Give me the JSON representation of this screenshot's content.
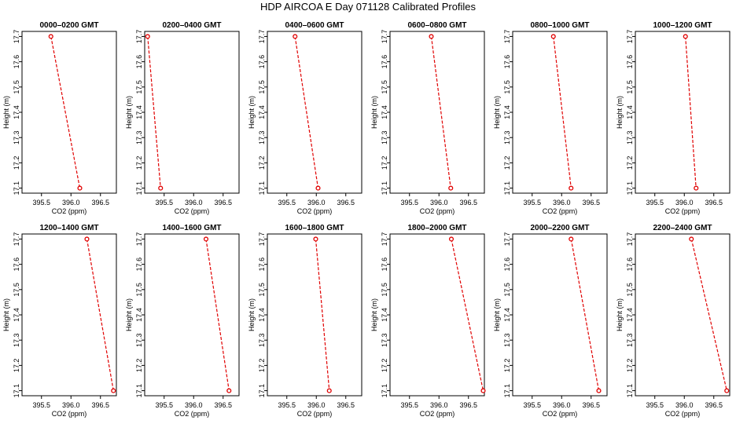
{
  "title": "HDP  AIRCOA E  Day 071128  Calibrated Profiles",
  "chart_data": [
    {
      "type": "line",
      "title": "0000–0200 GMT",
      "xlabel": "CO2 (ppm)",
      "ylabel": "Height (m)",
      "x_ticks": [
        395.5,
        396.0,
        396.5
      ],
      "x_tick_labels": [
        "395.5",
        "396.0",
        "396.5"
      ],
      "y_ticks": [
        17.1,
        17.2,
        17.3,
        17.4,
        17.5,
        17.6,
        17.7
      ],
      "y_tick_labels": [
        "17.1",
        "17.2",
        "17.3",
        "17.4",
        "17.5",
        "17.6",
        "17.7"
      ],
      "ylim": [
        17.08,
        17.72
      ],
      "xlim": [
        395.17,
        396.77
      ],
      "series": [
        {
          "x": [
            395.66,
            396.15
          ],
          "y": [
            17.7,
            17.1
          ]
        }
      ]
    },
    {
      "type": "line",
      "title": "0200–0400 GMT",
      "xlabel": "CO2 (ppm)",
      "ylabel": "Height (m)",
      "x_ticks": [
        395.5,
        396.0,
        396.5
      ],
      "x_tick_labels": [
        "395.5",
        "396.0",
        "396.5"
      ],
      "y_ticks": [
        17.1,
        17.2,
        17.3,
        17.4,
        17.5,
        17.6,
        17.7
      ],
      "y_tick_labels": [
        "17.1",
        "17.2",
        "17.3",
        "17.4",
        "17.5",
        "17.6",
        "17.7"
      ],
      "ylim": [
        17.08,
        17.72
      ],
      "xlim": [
        395.17,
        396.77
      ],
      "series": [
        {
          "x": [
            395.22,
            395.44
          ],
          "y": [
            17.7,
            17.1
          ]
        }
      ]
    },
    {
      "type": "line",
      "title": "0400–0600 GMT",
      "xlabel": "CO2 (ppm)",
      "ylabel": "Height (m)",
      "x_ticks": [
        395.5,
        396.0,
        396.5
      ],
      "x_tick_labels": [
        "395.5",
        "396.0",
        "396.5"
      ],
      "y_ticks": [
        17.1,
        17.2,
        17.3,
        17.4,
        17.5,
        17.6,
        17.7
      ],
      "y_tick_labels": [
        "17.1",
        "17.2",
        "17.3",
        "17.4",
        "17.5",
        "17.6",
        "17.7"
      ],
      "ylim": [
        17.08,
        17.72
      ],
      "xlim": [
        395.17,
        396.77
      ],
      "series": [
        {
          "x": [
            395.64,
            396.03
          ],
          "y": [
            17.7,
            17.1
          ]
        }
      ]
    },
    {
      "type": "line",
      "title": "0600–0800 GMT",
      "xlabel": "CO2 (ppm)",
      "ylabel": "Height (m)",
      "x_ticks": [
        395.5,
        396.0,
        396.5
      ],
      "x_tick_labels": [
        "395.5",
        "396.0",
        "396.5"
      ],
      "y_ticks": [
        17.1,
        17.2,
        17.3,
        17.4,
        17.5,
        17.6,
        17.7
      ],
      "y_tick_labels": [
        "17.1",
        "17.2",
        "17.3",
        "17.4",
        "17.5",
        "17.6",
        "17.7"
      ],
      "ylim": [
        17.08,
        17.72
      ],
      "xlim": [
        395.17,
        396.77
      ],
      "series": [
        {
          "x": [
            395.87,
            396.2
          ],
          "y": [
            17.7,
            17.1
          ]
        }
      ]
    },
    {
      "type": "line",
      "title": "0800–1000 GMT",
      "xlabel": "CO2 (ppm)",
      "ylabel": "Height (m)",
      "x_ticks": [
        395.5,
        396.0,
        396.5
      ],
      "x_tick_labels": [
        "395.5",
        "396.0",
        "396.5"
      ],
      "y_ticks": [
        17.1,
        17.2,
        17.3,
        17.4,
        17.5,
        17.6,
        17.7
      ],
      "y_tick_labels": [
        "17.1",
        "17.2",
        "17.3",
        "17.4",
        "17.5",
        "17.6",
        "17.7"
      ],
      "ylim": [
        17.08,
        17.72
      ],
      "xlim": [
        395.17,
        396.77
      ],
      "series": [
        {
          "x": [
            395.86,
            396.16
          ],
          "y": [
            17.7,
            17.1
          ]
        }
      ]
    },
    {
      "type": "line",
      "title": "1000–1200 GMT",
      "xlabel": "CO2 (ppm)",
      "ylabel": "Height (m)",
      "x_ticks": [
        395.5,
        396.0,
        396.5
      ],
      "x_tick_labels": [
        "395.5",
        "396.0",
        "396.5"
      ],
      "y_ticks": [
        17.1,
        17.2,
        17.3,
        17.4,
        17.5,
        17.6,
        17.7
      ],
      "y_tick_labels": [
        "17.1",
        "17.2",
        "17.3",
        "17.4",
        "17.5",
        "17.6",
        "17.7"
      ],
      "ylim": [
        17.08,
        17.72
      ],
      "xlim": [
        395.17,
        396.77
      ],
      "series": [
        {
          "x": [
            396.02,
            396.2
          ],
          "y": [
            17.7,
            17.1
          ]
        }
      ]
    },
    {
      "type": "line",
      "title": "1200–1400 GMT",
      "xlabel": "CO2 (ppm)",
      "ylabel": "Height (m)",
      "x_ticks": [
        395.5,
        396.0,
        396.5
      ],
      "x_tick_labels": [
        "395.5",
        "396.0",
        "396.5"
      ],
      "y_ticks": [
        17.1,
        17.2,
        17.3,
        17.4,
        17.5,
        17.6,
        17.7
      ],
      "y_tick_labels": [
        "17.1",
        "17.2",
        "17.3",
        "17.4",
        "17.5",
        "17.6",
        "17.7"
      ],
      "ylim": [
        17.08,
        17.72
      ],
      "xlim": [
        395.17,
        396.77
      ],
      "series": [
        {
          "x": [
            396.27,
            396.72
          ],
          "y": [
            17.7,
            17.1
          ]
        }
      ]
    },
    {
      "type": "line",
      "title": "1400–1600 GMT",
      "xlabel": "CO2 (ppm)",
      "ylabel": "Height (m)",
      "x_ticks": [
        395.5,
        396.0,
        396.5
      ],
      "x_tick_labels": [
        "395.5",
        "396.0",
        "396.5"
      ],
      "y_ticks": [
        17.1,
        17.2,
        17.3,
        17.4,
        17.5,
        17.6,
        17.7
      ],
      "y_tick_labels": [
        "17.1",
        "17.2",
        "17.3",
        "17.4",
        "17.5",
        "17.6",
        "17.7"
      ],
      "ylim": [
        17.08,
        17.72
      ],
      "xlim": [
        395.17,
        396.77
      ],
      "series": [
        {
          "x": [
            396.21,
            396.6
          ],
          "y": [
            17.7,
            17.1
          ]
        }
      ]
    },
    {
      "type": "line",
      "title": "1600–1800 GMT",
      "xlabel": "CO2 (ppm)",
      "ylabel": "Height (m)",
      "x_ticks": [
        395.5,
        396.0,
        396.5
      ],
      "x_tick_labels": [
        "395.5",
        "396.0",
        "396.5"
      ],
      "y_ticks": [
        17.1,
        17.2,
        17.3,
        17.4,
        17.5,
        17.6,
        17.7
      ],
      "y_tick_labels": [
        "17.1",
        "17.2",
        "17.3",
        "17.4",
        "17.5",
        "17.6",
        "17.7"
      ],
      "ylim": [
        17.08,
        17.72
      ],
      "xlim": [
        395.17,
        396.77
      ],
      "series": [
        {
          "x": [
            395.99,
            396.22
          ],
          "y": [
            17.7,
            17.1
          ]
        }
      ]
    },
    {
      "type": "line",
      "title": "1800–2000 GMT",
      "xlabel": "CO2 (ppm)",
      "ylabel": "Height (m)",
      "x_ticks": [
        395.5,
        396.0,
        396.5
      ],
      "x_tick_labels": [
        "395.5",
        "396.0",
        "396.5"
      ],
      "y_ticks": [
        17.1,
        17.2,
        17.3,
        17.4,
        17.5,
        17.6,
        17.7
      ],
      "y_tick_labels": [
        "17.1",
        "17.2",
        "17.3",
        "17.4",
        "17.5",
        "17.6",
        "17.7"
      ],
      "ylim": [
        17.08,
        17.72
      ],
      "xlim": [
        395.17,
        396.77
      ],
      "series": [
        {
          "x": [
            396.21,
            396.75
          ],
          "y": [
            17.7,
            17.1
          ]
        }
      ]
    },
    {
      "type": "line",
      "title": "2000–2200 GMT",
      "xlabel": "CO2 (ppm)",
      "ylabel": "Height (m)",
      "x_ticks": [
        395.5,
        396.0,
        396.5
      ],
      "x_tick_labels": [
        "395.5",
        "396.0",
        "396.5"
      ],
      "y_ticks": [
        17.1,
        17.2,
        17.3,
        17.4,
        17.5,
        17.6,
        17.7
      ],
      "y_tick_labels": [
        "17.1",
        "17.2",
        "17.3",
        "17.4",
        "17.5",
        "17.6",
        "17.7"
      ],
      "ylim": [
        17.08,
        17.72
      ],
      "xlim": [
        395.17,
        396.77
      ],
      "series": [
        {
          "x": [
            396.16,
            396.63
          ],
          "y": [
            17.7,
            17.1
          ]
        }
      ]
    },
    {
      "type": "line",
      "title": "2200–2400 GMT",
      "xlabel": "CO2 (ppm)",
      "ylabel": "Height (m)",
      "x_ticks": [
        395.5,
        396.0,
        396.5
      ],
      "x_tick_labels": [
        "395.5",
        "396.0",
        "396.5"
      ],
      "y_ticks": [
        17.1,
        17.2,
        17.3,
        17.4,
        17.5,
        17.6,
        17.7
      ],
      "y_tick_labels": [
        "17.1",
        "17.2",
        "17.3",
        "17.4",
        "17.5",
        "17.6",
        "17.7"
      ],
      "ylim": [
        17.08,
        17.72
      ],
      "xlim": [
        395.17,
        396.77
      ],
      "series": [
        {
          "x": [
            396.12,
            396.72
          ],
          "y": [
            17.7,
            17.1
          ]
        }
      ]
    }
  ]
}
